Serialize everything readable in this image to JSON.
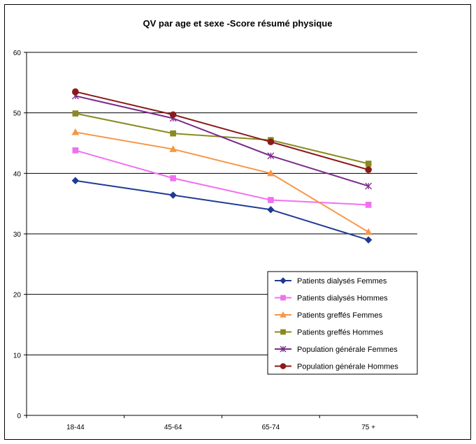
{
  "chart_data": {
    "type": "line",
    "title": "QV par age et sexe -Score résumé physique",
    "categories": [
      "18-44",
      "45-64",
      "65-74",
      "75 +"
    ],
    "ylim": [
      0,
      60
    ],
    "yticks": [
      0,
      10,
      20,
      30,
      40,
      50,
      60
    ],
    "grid": "horizontal major lines",
    "legend_position": "bottom-right",
    "series": [
      {
        "name": "Patients dialysés  Femmes",
        "values": [
          38.8,
          36.4,
          34.0,
          29.0
        ],
        "color": "#1F3A93",
        "marker": "diamond"
      },
      {
        "name": "Patients dialysés  Hommes",
        "values": [
          43.8,
          39.2,
          35.6,
          34.8
        ],
        "color": "#F070F0",
        "marker": "square"
      },
      {
        "name": "Patients greffés  Femmes",
        "values": [
          46.8,
          44.0,
          40.0,
          30.3
        ],
        "color": "#F79646",
        "marker": "triangle"
      },
      {
        "name": "Patients greffés  Hommes",
        "values": [
          49.9,
          46.6,
          45.5,
          41.6
        ],
        "color": "#8A8A1F",
        "marker": "square"
      },
      {
        "name": "Population générale Femmes",
        "values": [
          52.8,
          49.1,
          42.9,
          37.9
        ],
        "color": "#7B2C8B",
        "marker": "star"
      },
      {
        "name": "Population générale  Hommes",
        "values": [
          53.5,
          49.7,
          45.2,
          40.6
        ],
        "color": "#8B1A1A",
        "marker": "circle"
      }
    ]
  }
}
